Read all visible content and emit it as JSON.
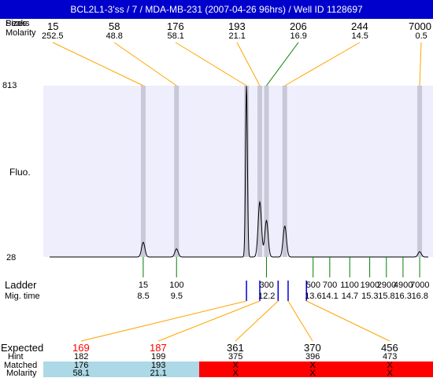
{
  "title": "BCL2L1-3'ss / 7 / MDA-MB-231 (2007-04-26 96hrs) / Well ID 1128697",
  "top_labels": {
    "peaks": "Peaks",
    "sizes": "Sizes",
    "molarity": "Molarity"
  },
  "axis": {
    "y_label": "Fluo.",
    "y_max": "813",
    "y_min": "28"
  },
  "ladder_labels": {
    "ladder": "Ladder",
    "migtime": "Mig. time"
  },
  "bottom_labels": {
    "expected": "Expected",
    "hint": "Hint",
    "matched": "Matched",
    "molarity": "Molarity"
  },
  "colors": {
    "title_bg": "#0000cc",
    "plot_bg": "#eeeefc",
    "band": "#c8c8d8",
    "orange": "#ffa500",
    "green": "#008000",
    "blue": "#0000dd",
    "matched_bg": "#add8e6",
    "unmatched_bg": "#ff0000",
    "expected_red": "#ff0000"
  },
  "chart_data": {
    "type": "line",
    "ylim": [
      28,
      813
    ],
    "xlim": [
      5.5,
      17.2
    ],
    "peaks": [
      {
        "size": "15",
        "molarity": "252.5",
        "time": 8.5,
        "height": 95
      },
      {
        "size": "58",
        "molarity": "48.8",
        "time": 9.5,
        "height": 65
      },
      {
        "size": "176",
        "molarity": "58.1",
        "time": 11.6,
        "height": 813
      },
      {
        "size": "193",
        "molarity": "21.1",
        "time": 12.0,
        "height": 280
      },
      {
        "size": "206",
        "molarity": "16.9",
        "time": 12.2,
        "height": 195
      },
      {
        "size": "244",
        "molarity": "14.5",
        "time": 12.75,
        "height": 170
      },
      {
        "size": "7000",
        "molarity": "0.5",
        "time": 16.8,
        "height": 52
      }
    ],
    "ladder": [
      {
        "size": "15",
        "time": "8.5",
        "t": 8.5
      },
      {
        "size": "100",
        "time": "9.5",
        "t": 9.5
      },
      {
        "size": "300",
        "time": "12.2",
        "t": 12.2
      },
      {
        "size": "500",
        "time": "13.6",
        "t": 13.6
      },
      {
        "size": "700",
        "time": "14.1",
        "t": 14.1
      },
      {
        "size": "1100",
        "time": "14.7",
        "t": 14.7
      },
      {
        "size": "1900",
        "time": "15.3",
        "t": 15.3
      },
      {
        "size": "2900",
        "time": "15.8",
        "t": 15.8
      },
      {
        "size": "4900",
        "time": "16.3",
        "t": 16.3
      },
      {
        "size": "7000",
        "time": "16.8",
        "t": 16.8
      }
    ],
    "expected_markers": [
      {
        "t": 11.6,
        "expected": "169",
        "hint": "182",
        "matched": "176",
        "molarity": "58.1",
        "status": "matched"
      },
      {
        "t": 12.0,
        "expected": "187",
        "hint": "199",
        "matched": "193",
        "molarity": "21.1",
        "status": "matched"
      },
      {
        "t": 12.55,
        "expected": "361",
        "hint": "375",
        "matched": "X",
        "molarity": "X",
        "status": "unmatched"
      },
      {
        "t": 12.85,
        "expected": "370",
        "hint": "396",
        "matched": "X",
        "molarity": "X",
        "status": "unmatched"
      },
      {
        "t": 13.4,
        "expected": "456",
        "hint": "473",
        "matched": "X",
        "molarity": "X",
        "status": "unmatched"
      }
    ]
  }
}
